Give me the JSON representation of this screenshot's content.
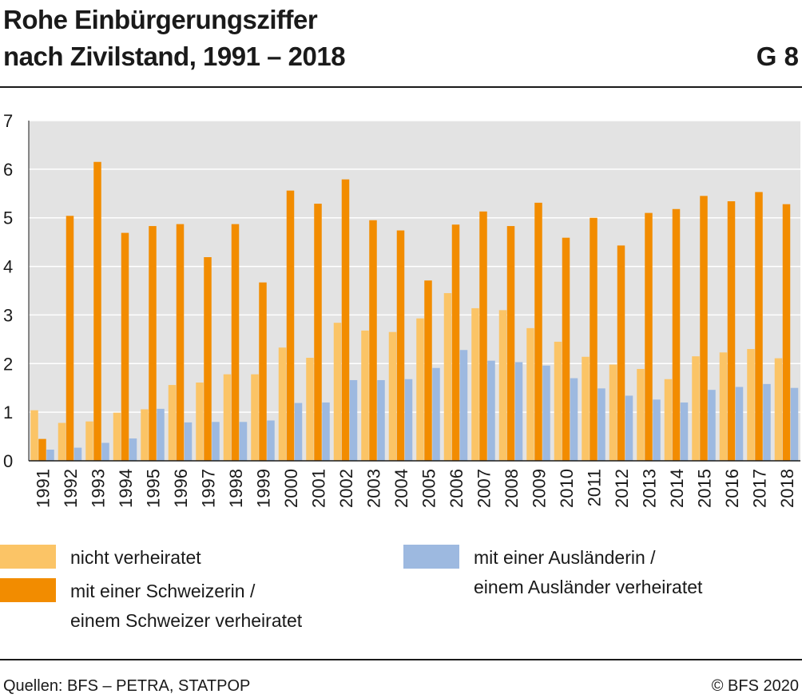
{
  "header": {
    "title_line1": "Rohe Einbürgerungsziffer",
    "title_line2": "nach Zivilstand, 1991 – 2018",
    "figure_number": "G 8"
  },
  "footer": {
    "source": "Quellen: BFS – PETRA, STATPOP",
    "copyright": "© BFS 2020"
  },
  "colors": {
    "plot_background": "#e3e3e3",
    "gridline": "#ffffff",
    "nicht_verheiratet": "#fbc466",
    "schweizer": "#f28c00",
    "auslaender": "#9db9e0"
  },
  "legend": [
    {
      "line1": "nicht verheiratet",
      "line2": ""
    },
    {
      "line1": "mit einer Schweizerin /",
      "line2": "einem Schweizer verheiratet"
    },
    {
      "line1": "mit einer Ausländerin /",
      "line2": "einem Ausländer verheiratet"
    }
  ],
  "chart_data": {
    "type": "bar",
    "title": "Rohe Einbürgerungsziffer nach Zivilstand, 1991 – 2018",
    "xlabel": "",
    "ylabel": "",
    "ylim": [
      0,
      7
    ],
    "yticks": [
      0,
      1,
      2,
      3,
      4,
      5,
      6,
      7
    ],
    "grid": true,
    "legend_position": "bottom",
    "categories": [
      "1991",
      "1992",
      "1993",
      "1994",
      "1995",
      "1996",
      "1997",
      "1998",
      "1999",
      "2000",
      "2001",
      "2002",
      "2003",
      "2004",
      "2005",
      "2006",
      "2007",
      "2008",
      "2009",
      "2010",
      "2011",
      "2012",
      "2013",
      "2014",
      "2015",
      "2016",
      "2017",
      "2018"
    ],
    "series": [
      {
        "name": "nicht verheiratet",
        "values": [
          1.04,
          0.78,
          0.81,
          0.99,
          1.06,
          1.56,
          1.61,
          1.78,
          1.78,
          2.33,
          2.12,
          2.84,
          2.68,
          2.65,
          2.93,
          3.45,
          3.14,
          3.1,
          2.73,
          2.45,
          2.14,
          1.98,
          1.89,
          1.68,
          2.15,
          2.23,
          2.3,
          2.11
        ]
      },
      {
        "name": "mit einer Schweizerin / einem Schweizer verheiratet",
        "values": [
          0.45,
          5.04,
          6.15,
          4.69,
          4.83,
          4.87,
          4.19,
          4.87,
          3.67,
          5.56,
          5.29,
          5.79,
          4.95,
          4.74,
          3.71,
          4.86,
          5.13,
          4.83,
          5.31,
          4.59,
          5.0,
          4.43,
          5.1,
          5.18,
          5.45,
          5.34,
          5.53,
          5.28
        ]
      },
      {
        "name": "mit einer Ausländerin / einem Ausländer verheiratet",
        "values": [
          0.23,
          0.27,
          0.37,
          0.46,
          1.07,
          0.79,
          0.8,
          0.8,
          0.83,
          1.19,
          1.2,
          1.66,
          1.66,
          1.68,
          1.91,
          2.28,
          2.06,
          2.03,
          1.96,
          1.7,
          1.49,
          1.34,
          1.26,
          1.2,
          1.46,
          1.52,
          1.58,
          1.5
        ]
      }
    ]
  }
}
